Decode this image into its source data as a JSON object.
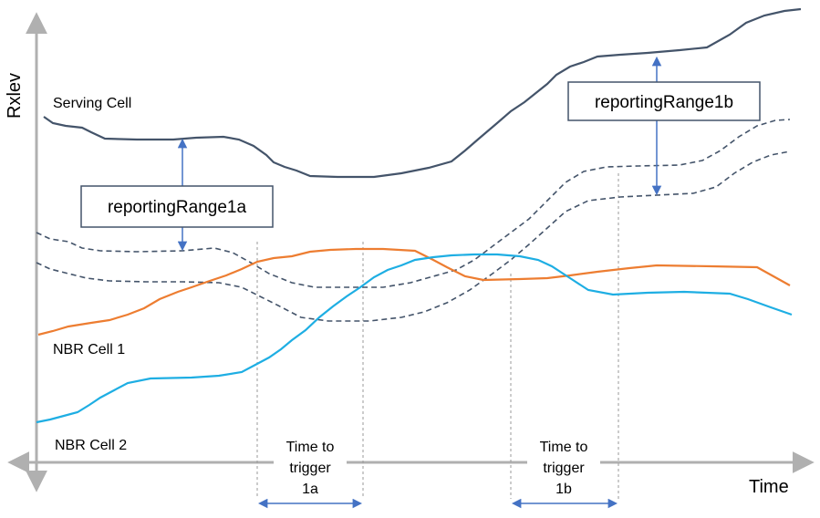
{
  "axes": {
    "y_label": "Rxlev",
    "x_label": "Time"
  },
  "cells": {
    "serving": "Serving Cell",
    "nbr1": "NBR Cell 1",
    "nbr2": "NBR Cell 2"
  },
  "reporting_ranges": {
    "r1a": "reportingRange1a",
    "r1b": "reportingRange1b"
  },
  "time_to_trigger": {
    "t1a": [
      "Time to",
      "trigger",
      "1a"
    ],
    "t1b": [
      "Time to",
      "trigger",
      "1b"
    ]
  },
  "colors": {
    "serving": "#44546a",
    "nbr1": "#ed7d31",
    "nbr2": "#1eaee3",
    "threshold": "#44546a",
    "axis": "#b0b0b0",
    "arrow": "#4472c4",
    "guide": "#9a9a9a"
  }
}
